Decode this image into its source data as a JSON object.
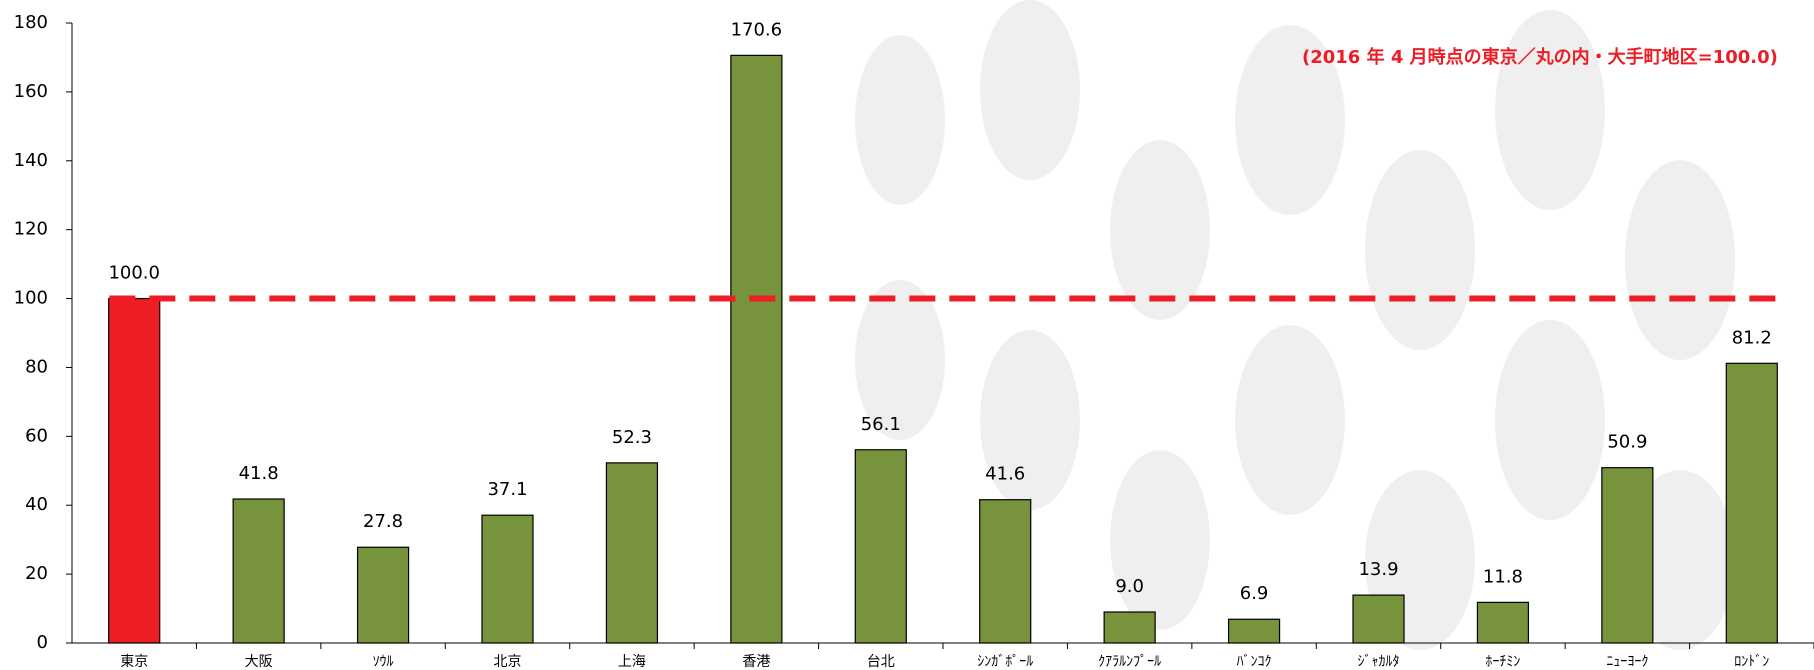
{
  "chart_data": {
    "type": "bar",
    "annotation": "(2016 年 4 月時点の東京／丸の内・大手町地区=100.0)",
    "categories": [
      "東京",
      "大阪",
      "ｿｳﾙ",
      "北京",
      "上海",
      "香港",
      "台北",
      "ｼﾝｶﾞﾎﾟｰﾙ",
      "ｸｱﾗﾙﾝﾌﾟｰﾙ",
      "ﾊﾞﾝｺｸ",
      "ｼﾞｬｶﾙﾀ",
      "ﾎｰﾁﾐﾝ",
      "ﾆｭｰﾖｰｸ",
      "ﾛﾝﾄﾞﾝ"
    ],
    "values": [
      100.0,
      41.8,
      27.8,
      37.1,
      52.3,
      170.6,
      56.1,
      41.6,
      9.0,
      6.9,
      13.9,
      11.8,
      50.9,
      81.2
    ],
    "value_labels": [
      "100.0",
      "41.8",
      "27.8",
      "37.1",
      "52.3",
      "170.6",
      "56.1",
      "41.6",
      "9.0",
      "6.9",
      "13.9",
      "11.8",
      "50.9",
      "81.2"
    ],
    "colors": [
      "#ee1c25",
      "#77933c",
      "#77933c",
      "#77933c",
      "#77933c",
      "#77933c",
      "#77933c",
      "#77933c",
      "#77933c",
      "#77933c",
      "#77933c",
      "#77933c",
      "#77933c",
      "#77933c"
    ],
    "reference_line": 100,
    "reference_color": "#ee1c25",
    "ylim": [
      0,
      180
    ],
    "yticks": [
      0,
      20,
      40,
      60,
      80,
      100,
      120,
      140,
      160,
      180
    ],
    "grid": false
  }
}
